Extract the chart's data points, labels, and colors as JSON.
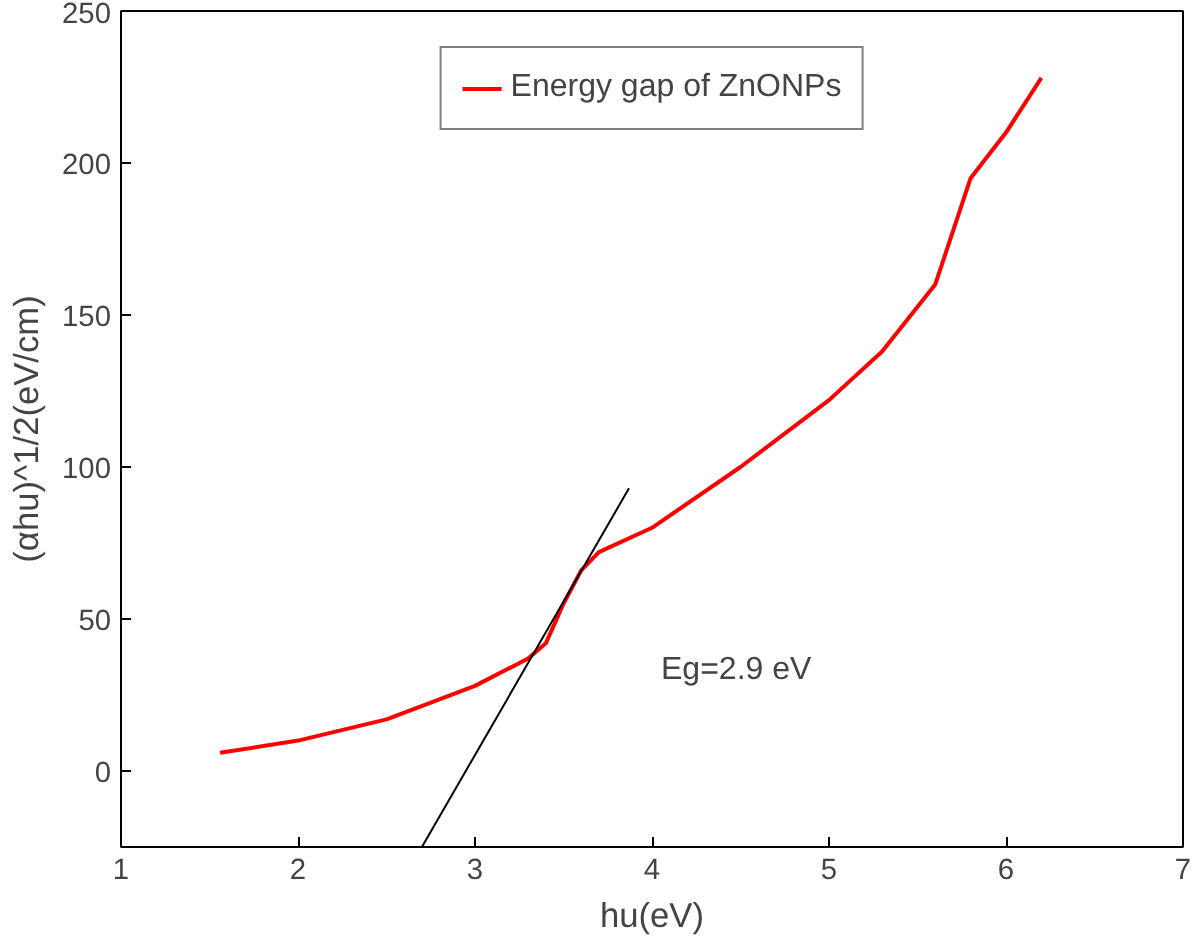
{
  "chart_data": {
    "type": "line",
    "xlabel": "hu(eV)",
    "ylabel": "(αhu)^1/2(eV/cm)",
    "xlim": [
      1,
      7
    ],
    "ylim": [
      -25,
      250
    ],
    "xticks": [
      1,
      2,
      3,
      4,
      5,
      6,
      7
    ],
    "yticks": [
      0,
      50,
      100,
      150,
      200,
      250
    ],
    "grid": false,
    "legend": "top",
    "marker": "none",
    "line_style": "solid",
    "annotations": [
      "Eg=2.9 eV"
    ],
    "series": [
      {
        "name": "Energy gap of ZnONPs",
        "color": "#ff0000",
        "x": [
          1.56,
          2.0,
          2.5,
          3.0,
          3.3,
          3.4,
          3.5,
          3.6,
          3.7,
          4.0,
          4.5,
          5.0,
          5.3,
          5.6,
          5.8,
          6.0,
          6.2
        ],
        "values": [
          6,
          10,
          17,
          28,
          37,
          42,
          55,
          66,
          72,
          80,
          100,
          122,
          138,
          160,
          195,
          210,
          228
        ]
      },
      {
        "color": "#000000",
        "x": [
          2.7,
          3.87
        ],
        "values": [
          -25,
          93
        ]
      }
    ]
  }
}
